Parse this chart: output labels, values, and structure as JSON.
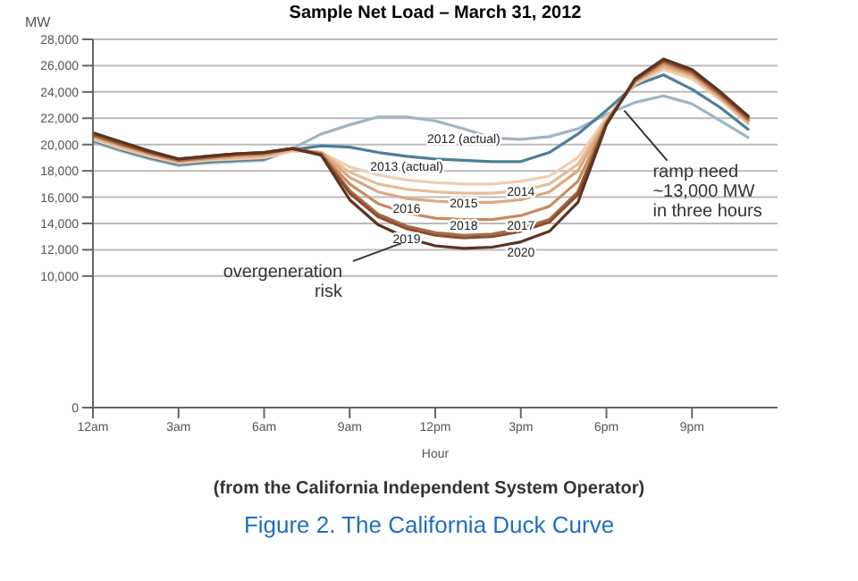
{
  "chart_data": {
    "type": "line",
    "title": "Sample Net Load – March 31, 2012",
    "xlabel": "Hour",
    "ylabel": "MW",
    "x": [
      "2012-03-31T00:00",
      "2012-03-31T01:00",
      "2012-03-31T02:00",
      "2012-03-31T03:00",
      "2012-03-31T04:00",
      "2012-03-31T05:00",
      "2012-03-31T06:00",
      "2012-03-31T07:00",
      "2012-03-31T08:00",
      "2012-03-31T09:00",
      "2012-03-31T10:00",
      "2012-03-31T11:00",
      "2012-03-31T12:00",
      "2012-03-31T13:00",
      "2012-03-31T14:00",
      "2012-03-31T15:00",
      "2012-03-31T16:00",
      "2012-03-31T17:00",
      "2012-03-31T18:00",
      "2012-03-31T19:00",
      "2012-03-31T20:00",
      "2012-03-31T21:00",
      "2012-03-31T22:00",
      "2012-03-31T23:00"
    ],
    "xlim": [
      "2012-03-31T00:00",
      "2012-04-01T00:00"
    ],
    "xticks": [
      {
        "value": "2012-03-31T00:00",
        "label": "12am"
      },
      {
        "value": "2012-03-31T03:00",
        "label": "3am"
      },
      {
        "value": "2012-03-31T06:00",
        "label": "6am"
      },
      {
        "value": "2012-03-31T09:00",
        "label": "9am"
      },
      {
        "value": "2012-03-31T12:00",
        "label": "12pm"
      },
      {
        "value": "2012-03-31T15:00",
        "label": "3pm"
      },
      {
        "value": "2012-03-31T18:00",
        "label": "6pm"
      },
      {
        "value": "2012-03-31T21:00",
        "label": "9pm"
      }
    ],
    "ylim": [
      0,
      28000
    ],
    "yticks": [
      0,
      {
        "value": 10000,
        "label": "10,000"
      },
      {
        "value": 12000,
        "label": "12,000"
      },
      {
        "value": 14000,
        "label": "14,000"
      },
      {
        "value": 16000,
        "label": "16,000"
      },
      {
        "value": 18000,
        "label": "18,000"
      },
      {
        "value": 20000,
        "label": "20,000"
      },
      {
        "value": 22000,
        "label": "22,000"
      },
      {
        "value": 24000,
        "label": "24,000"
      },
      {
        "value": 26000,
        "label": "26,000"
      },
      {
        "value": 28000,
        "label": "28,000"
      }
    ],
    "grid": "y",
    "series": [
      {
        "name": "2012 (actual)",
        "color": "#9fb5c2",
        "values": [
          20200,
          19500,
          18900,
          18400,
          18600,
          18700,
          18800,
          19700,
          20800,
          21500,
          22100,
          22100,
          21800,
          21200,
          20500,
          20400,
          20600,
          21200,
          22300,
          23200,
          23700,
          23100,
          21800,
          20500
        ]
      },
      {
        "name": "2013 (actual)",
        "color": "#4d7f99",
        "values": [
          20300,
          19600,
          19000,
          18500,
          18700,
          18800,
          18900,
          19600,
          19900,
          19800,
          19400,
          19100,
          18900,
          18800,
          18700,
          18700,
          19400,
          20800,
          22600,
          24500,
          25300,
          24200,
          22800,
          21100
        ]
      },
      {
        "name": "2014",
        "color": "#eecfb2",
        "values": [
          20400,
          19700,
          19100,
          18600,
          18800,
          18900,
          19000,
          19500,
          19400,
          18300,
          17700,
          17300,
          17100,
          17000,
          17000,
          17200,
          17600,
          19000,
          22000,
          24600,
          25700,
          25000,
          23400,
          21500
        ]
      },
      {
        "name": "2015",
        "color": "#e6bd98",
        "values": [
          20500,
          19800,
          19200,
          18700,
          18900,
          19000,
          19100,
          19600,
          19400,
          17900,
          17000,
          16600,
          16400,
          16300,
          16300,
          16500,
          17000,
          18500,
          21900,
          24700,
          25900,
          25200,
          23500,
          21600
        ]
      },
      {
        "name": "2016",
        "color": "#dca780",
        "values": [
          20600,
          19900,
          19300,
          18700,
          18900,
          19100,
          19200,
          19600,
          19400,
          17500,
          16400,
          15900,
          15700,
          15600,
          15600,
          15800,
          16400,
          18000,
          21800,
          24800,
          26000,
          25300,
          23600,
          21700
        ]
      },
      {
        "name": "2017",
        "color": "#c98b60",
        "values": [
          20700,
          20000,
          19300,
          18800,
          19000,
          19200,
          19300,
          19700,
          19300,
          17000,
          15500,
          14800,
          14400,
          14300,
          14300,
          14600,
          15300,
          17200,
          21700,
          24800,
          26200,
          25400,
          23700,
          21800
        ]
      },
      {
        "name": "2018",
        "color": "#a96b44",
        "values": [
          20700,
          20000,
          19400,
          18800,
          19000,
          19200,
          19300,
          19700,
          19300,
          16500,
          14700,
          13800,
          13300,
          13100,
          13200,
          13600,
          14300,
          16400,
          21600,
          24900,
          26300,
          25500,
          23800,
          21900
        ]
      },
      {
        "name": "2019",
        "color": "#8a502e",
        "values": [
          20800,
          20100,
          19400,
          18900,
          19100,
          19300,
          19400,
          19700,
          19200,
          16300,
          14500,
          13600,
          13100,
          12900,
          13000,
          13400,
          14100,
          16200,
          21600,
          24900,
          26400,
          25600,
          23900,
          22000
        ]
      },
      {
        "name": "2020",
        "color": "#5b3421",
        "values": [
          20900,
          20200,
          19500,
          18900,
          19100,
          19300,
          19400,
          19700,
          19200,
          15800,
          13900,
          12900,
          12300,
          12100,
          12200,
          12600,
          13400,
          15600,
          21500,
          25000,
          26500,
          25700,
          24000,
          22100
        ]
      }
    ],
    "annotations": [
      {
        "text": "ramp need ~13,000 MW in three hours",
        "x": "2012-03-31T18:30",
        "y": 23000
      },
      {
        "text": "overgeneration risk",
        "x": "2012-03-31T11:00",
        "y": 12900
      },
      "(from the California Independent System Operator)",
      "Figure 2. The California Duck Curve"
    ]
  }
}
